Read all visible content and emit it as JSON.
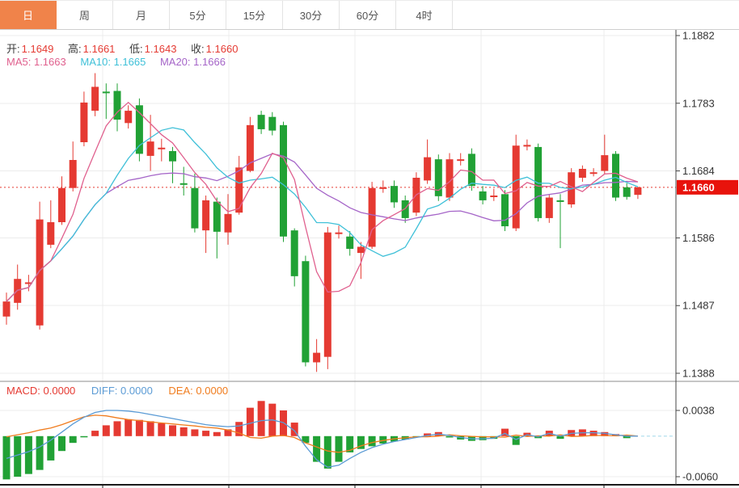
{
  "tabbar": {
    "tabs": [
      {
        "label": "日",
        "active": true
      },
      {
        "label": "周",
        "active": false
      },
      {
        "label": "月",
        "active": false
      },
      {
        "label": "5分",
        "active": false
      },
      {
        "label": "15分",
        "active": false
      },
      {
        "label": "30分",
        "active": false
      },
      {
        "label": "60分",
        "active": false
      },
      {
        "label": "4时",
        "active": false
      }
    ]
  },
  "main_legend": {
    "ohlc": [
      {
        "label": "开:",
        "value": "1.1649"
      },
      {
        "label": "高:",
        "value": "1.1661"
      },
      {
        "label": "低:",
        "value": "1.1643"
      },
      {
        "label": "收:",
        "value": "1.1660"
      }
    ],
    "ma": [
      {
        "label": "MA5:",
        "value": "1.1663"
      },
      {
        "label": "MA10:",
        "value": "1.1665"
      },
      {
        "label": "MA20:",
        "value": "1.1666"
      }
    ]
  },
  "macd_legend": [
    {
      "label": "MACD:",
      "value": "0.0000"
    },
    {
      "label": "DIFF:",
      "value": "0.0000"
    },
    {
      "label": "DEA:",
      "value": "0.0000"
    }
  ],
  "y_axis": {
    "main_ticks": [
      "1.1882",
      "1.1783",
      "1.1684",
      "1.1586",
      "1.1487",
      "1.1388"
    ],
    "macd_ticks": [
      "0.0038",
      "-0.0060"
    ],
    "price_tag": "1.1660"
  },
  "colors": {
    "up": "#e53a32",
    "down": "#21a135",
    "ma5": "#e0608e",
    "ma10": "#3fc0d8",
    "ma20": "#a565c8",
    "diff": "#5b9bd5",
    "dea": "#f07c1e",
    "grid": "#ececec",
    "axis": "#444444",
    "text": "#333333",
    "price_line": "#e53a32",
    "tag_bg": "#e8130c",
    "tab_active_bg": "#f0834a",
    "zero_dash": "#aadcec"
  },
  "chart_data": [
    {
      "type": "candlestick",
      "title": "EUR/USD daily K-line",
      "legend_position": "top-left",
      "grid": true,
      "y_ticks": [
        1.1882,
        1.1783,
        1.1684,
        1.1586,
        1.1487,
        1.1388
      ],
      "ylim": [
        1.138,
        1.1895
      ],
      "current_price": 1.166,
      "ohlc_legend": {
        "open": 1.1649,
        "high": 1.1661,
        "low": 1.1643,
        "close": 1.166
      },
      "ma_legend": {
        "MA5": 1.1663,
        "MA10": 1.1665,
        "MA20": 1.1666
      },
      "up_means": "close > open (red)",
      "candles_format": [
        "open",
        "high",
        "low",
        "close"
      ],
      "candles": [
        [
          1.1471,
          1.1506,
          1.1459,
          1.1493
        ],
        [
          1.1491,
          1.1547,
          1.1481,
          1.1526
        ],
        [
          1.152,
          1.1532,
          1.1508,
          1.1521
        ],
        [
          1.1458,
          1.1639,
          1.1452,
          1.1613
        ],
        [
          1.1576,
          1.1641,
          1.1571,
          1.1609
        ],
        [
          1.1609,
          1.1676,
          1.1605,
          1.1659
        ],
        [
          1.1659,
          1.1727,
          1.1654,
          1.17
        ],
        [
          1.1726,
          1.18,
          1.172,
          1.1784
        ],
        [
          1.1772,
          1.1827,
          1.1764,
          1.1807
        ],
        [
          1.18,
          1.1812,
          1.176,
          1.1799
        ],
        [
          1.1801,
          1.1812,
          1.1742,
          1.1759
        ],
        [
          1.1754,
          1.178,
          1.1746,
          1.1772
        ],
        [
          1.178,
          1.179,
          1.1698,
          1.1709
        ],
        [
          1.1706,
          1.1766,
          1.1684,
          1.1727
        ],
        [
          1.1717,
          1.1731,
          1.1698,
          1.1718
        ],
        [
          1.1713,
          1.1719,
          1.1666,
          1.1698
        ],
        [
          1.1666,
          1.169,
          1.1648,
          1.1665
        ],
        [
          1.1659,
          1.168,
          1.1594,
          1.16
        ],
        [
          1.1597,
          1.1648,
          1.1564,
          1.1641
        ],
        [
          1.1639,
          1.1645,
          1.1556,
          1.1595
        ],
        [
          1.1594,
          1.165,
          1.1576,
          1.1621
        ],
        [
          1.1623,
          1.1706,
          1.162,
          1.1689
        ],
        [
          1.1684,
          1.1763,
          1.1682,
          1.1751
        ],
        [
          1.1766,
          1.1772,
          1.1738,
          1.1745
        ],
        [
          1.1763,
          1.177,
          1.1736,
          1.1743
        ],
        [
          1.1751,
          1.1756,
          1.158,
          1.1588
        ],
        [
          1.1597,
          1.16,
          1.1515,
          1.153
        ],
        [
          1.1552,
          1.156,
          1.1398,
          1.1404
        ],
        [
          1.1404,
          1.1438,
          1.139,
          1.1418
        ],
        [
          1.1412,
          1.1602,
          1.1394,
          1.1594
        ],
        [
          1.1593,
          1.1604,
          1.1585,
          1.1594
        ],
        [
          1.1588,
          1.1596,
          1.156,
          1.157
        ],
        [
          1.1564,
          1.158,
          1.1526,
          1.1573
        ],
        [
          1.1573,
          1.1668,
          1.157,
          1.1659
        ],
        [
          1.1659,
          1.167,
          1.1652,
          1.166
        ],
        [
          1.1662,
          1.167,
          1.163,
          1.1638
        ],
        [
          1.1641,
          1.1648,
          1.1608,
          1.1615
        ],
        [
          1.1623,
          1.1682,
          1.1618,
          1.1674
        ],
        [
          1.167,
          1.173,
          1.1665,
          1.1704
        ],
        [
          1.1701,
          1.1708,
          1.164,
          1.1647
        ],
        [
          1.1645,
          1.171,
          1.164,
          1.1701
        ],
        [
          1.17,
          1.171,
          1.1692,
          1.1701
        ],
        [
          1.1709,
          1.1717,
          1.1655,
          1.1662
        ],
        [
          1.1654,
          1.1662,
          1.1635,
          1.1641
        ],
        [
          1.1647,
          1.1658,
          1.164,
          1.1648
        ],
        [
          1.165,
          1.1656,
          1.1596,
          1.1603
        ],
        [
          1.16,
          1.1737,
          1.1596,
          1.1721
        ],
        [
          1.1721,
          1.173,
          1.1714,
          1.1722
        ],
        [
          1.1719,
          1.1724,
          1.161,
          1.1615
        ],
        [
          1.1615,
          1.165,
          1.1608,
          1.1645
        ],
        [
          1.1641,
          1.165,
          1.1571,
          1.164
        ],
        [
          1.1635,
          1.1688,
          1.163,
          1.1682
        ],
        [
          1.1674,
          1.1692,
          1.1668,
          1.1687
        ],
        [
          1.1681,
          1.1688,
          1.1676,
          1.1682
        ],
        [
          1.1684,
          1.1737,
          1.168,
          1.1707
        ],
        [
          1.1709,
          1.1713,
          1.164,
          1.1645
        ],
        [
          1.166,
          1.1666,
          1.1642,
          1.1646
        ],
        [
          1.1649,
          1.1661,
          1.1643,
          1.166
        ]
      ]
    },
    {
      "type": "bar",
      "title": "MACD",
      "legend": {
        "MACD": 0.0,
        "DIFF": 0.0,
        "DEA": 0.0
      },
      "y_ticks": [
        0.0038,
        -0.006
      ],
      "hist_rule": "hist = 2 * (DIFF - DEA)",
      "hist": [
        -0.0064,
        -0.006,
        -0.0056,
        -0.005,
        -0.0036,
        -0.0022,
        -0.001,
        -0.0001,
        0.0008,
        0.0016,
        0.0022,
        0.0025,
        0.0024,
        0.0022,
        0.0019,
        0.0016,
        0.0013,
        0.001,
        0.0008,
        0.0006,
        0.001,
        0.0021,
        0.0042,
        0.0052,
        0.0048,
        0.0038,
        0.002,
        -0.001,
        -0.0038,
        -0.0048,
        -0.0038,
        -0.0024,
        -0.0019,
        -0.0015,
        -0.0011,
        -0.0008,
        -0.0005,
        -0.0002,
        0.0004,
        0.0006,
        -0.0002,
        -0.0005,
        -0.0007,
        -0.0006,
        -0.0004,
        0.0011,
        -0.0013,
        0.0005,
        -0.0003,
        0.0008,
        -0.0004,
        0.0009,
        0.001,
        0.0008,
        0.0006,
        0.0003,
        -0.0003,
        0.0
      ],
      "diff": [
        -0.0033,
        -0.0028,
        -0.0023,
        -0.0016,
        -0.0006,
        0.0006,
        0.0018,
        0.0028,
        0.0035,
        0.0038,
        0.0038,
        0.0037,
        0.0035,
        0.0032,
        0.0029,
        0.0026,
        0.0023,
        0.002,
        0.0017,
        0.0015,
        0.0014,
        0.0015,
        0.0019,
        0.0023,
        0.0024,
        0.002,
        0.0008,
        -0.0015,
        -0.0035,
        -0.0046,
        -0.0043,
        -0.0033,
        -0.0024,
        -0.0017,
        -0.0012,
        -0.0008,
        -0.0005,
        -0.0002,
        0.0001,
        0.0003,
        0.0001,
        -0.0002,
        -0.0004,
        -0.0004,
        -0.0003,
        0.0004,
        -0.0005,
        0.0002,
        -0.0001,
        0.0004,
        0.0,
        0.0004,
        0.0005,
        0.0005,
        0.0004,
        0.0002,
        0.0,
        0.0
      ]
    }
  ]
}
